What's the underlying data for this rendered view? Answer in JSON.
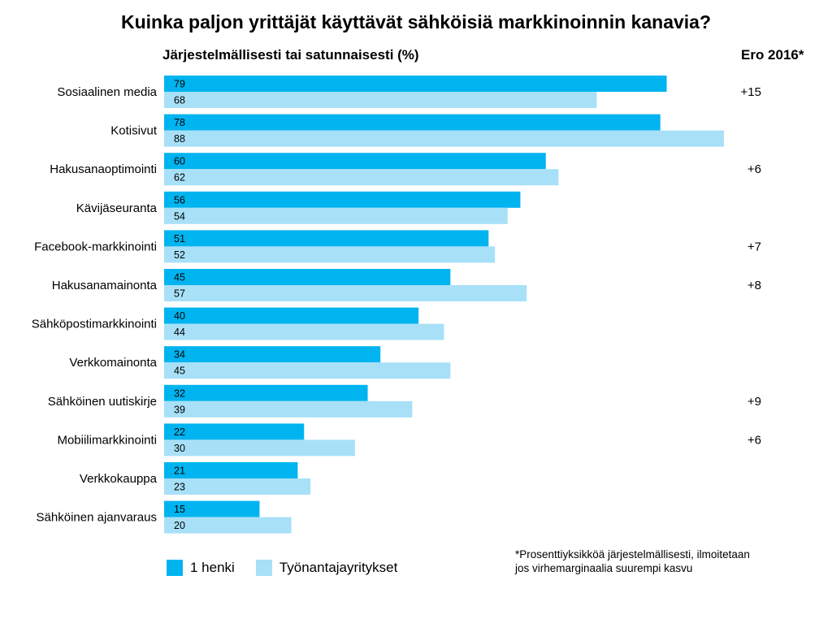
{
  "chart_data": {
    "type": "bar",
    "orientation": "horizontal",
    "title": "Kuinka paljon yrittäjät käyttävät sähköisiä markkinoinnin kanavia?",
    "subtitle": "Järjestelmällisesti tai satunnaisesti (%)",
    "diff_header": "Ero 2016*",
    "categories": [
      "Sosiaalinen media",
      "Kotisivut",
      "Hakusanaoptimointi",
      "Kävijäseuranta",
      "Facebook-markkinointi",
      "Hakusanamainonta",
      "Sähköpostimarkkinointi",
      "Verkkomainonta",
      "Sähköinen uutiskirje",
      "Mobiilimarkkinointi",
      "Verkkokauppa",
      "Sähköinen ajanvaraus"
    ],
    "series": [
      {
        "name": "1 henki",
        "color": "#00b4f0",
        "values": [
          79,
          78,
          60,
          56,
          51,
          45,
          40,
          34,
          32,
          22,
          21,
          15
        ]
      },
      {
        "name": "Työnantajayritykset",
        "color": "#a8e0f8",
        "values": [
          68,
          88,
          62,
          54,
          52,
          57,
          44,
          45,
          39,
          30,
          23,
          20
        ]
      }
    ],
    "diffs": [
      "+15",
      "",
      "+6",
      "",
      "+7",
      "+8",
      "",
      "",
      "+9",
      "+6",
      "",
      ""
    ],
    "xlim": [
      0,
      88
    ],
    "grid": false,
    "legend_position": "bottom-left",
    "footnote_lines": [
      "*Prosenttiyksikköä järjestelmällisesti, ilmoitetaan",
      "jos virhemarginaalia suurempi kasvu"
    ]
  }
}
